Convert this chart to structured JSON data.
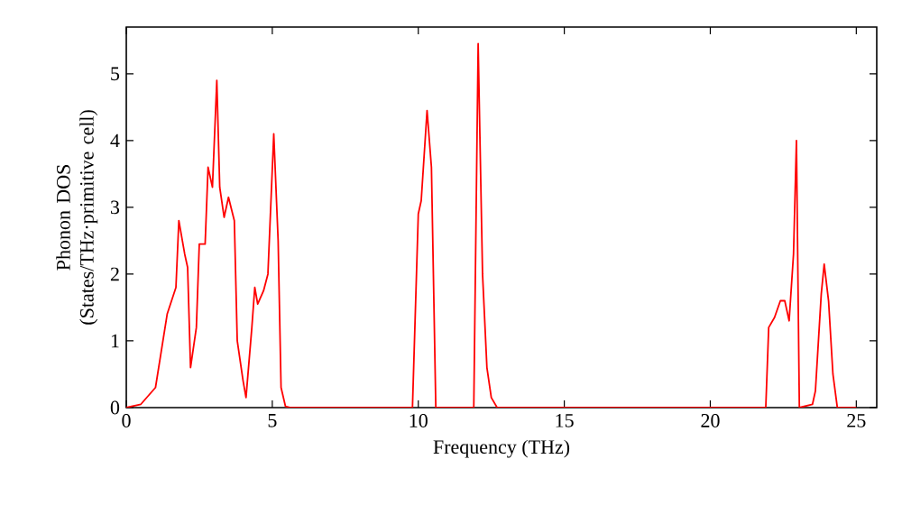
{
  "chart_data": {
    "type": "line",
    "xlabel": "Frequency (THz)",
    "ylabel": "Phonon DOS (States/THz·primitive cell)",
    "xlim": [
      0,
      25.7
    ],
    "ylim": [
      0,
      5.7
    ],
    "xticks": [
      0,
      5,
      10,
      15,
      20,
      25
    ],
    "yticks": [
      0,
      1,
      2,
      3,
      4,
      5
    ],
    "grid": false,
    "marker": "none",
    "line_style": "solid",
    "series": [
      {
        "color": "#ff0000",
        "x": [
          0,
          0.5,
          1,
          1.4,
          1.7,
          1.8,
          2.0,
          2.1,
          2.2,
          2.4,
          2.5,
          2.7,
          2.8,
          2.95,
          3.1,
          3.2,
          3.35,
          3.5,
          3.7,
          3.8,
          4.0,
          4.1,
          4.3,
          4.4,
          4.5,
          4.7,
          4.85,
          5.05,
          5.2,
          5.3,
          5.45,
          5.6,
          9.8,
          10.0,
          10.1,
          10.3,
          10.45,
          10.6,
          11.9,
          12.05,
          12.2,
          12.35,
          12.5,
          12.7,
          21.9,
          22.0,
          22.2,
          22.4,
          22.55,
          22.7,
          22.85,
          22.95,
          23.05,
          23.5,
          23.6,
          23.8,
          23.9,
          24.05,
          24.2,
          24.35,
          25
        ],
        "values": [
          0,
          0.05,
          0.3,
          1.4,
          1.8,
          2.8,
          2.3,
          2.1,
          0.6,
          1.2,
          2.45,
          2.45,
          3.6,
          3.3,
          4.9,
          3.3,
          2.85,
          3.15,
          2.8,
          1.0,
          0.4,
          0.15,
          1.2,
          1.8,
          1.55,
          1.75,
          2.0,
          4.1,
          2.5,
          0.3,
          0.02,
          0,
          0,
          2.9,
          3.1,
          4.45,
          3.6,
          0,
          0,
          5.45,
          2.0,
          0.6,
          0.15,
          0,
          0,
          1.2,
          1.35,
          1.6,
          1.6,
          1.3,
          2.3,
          4.0,
          0,
          0.05,
          0.25,
          1.7,
          2.15,
          1.6,
          0.5,
          0,
          0
        ]
      }
    ]
  }
}
